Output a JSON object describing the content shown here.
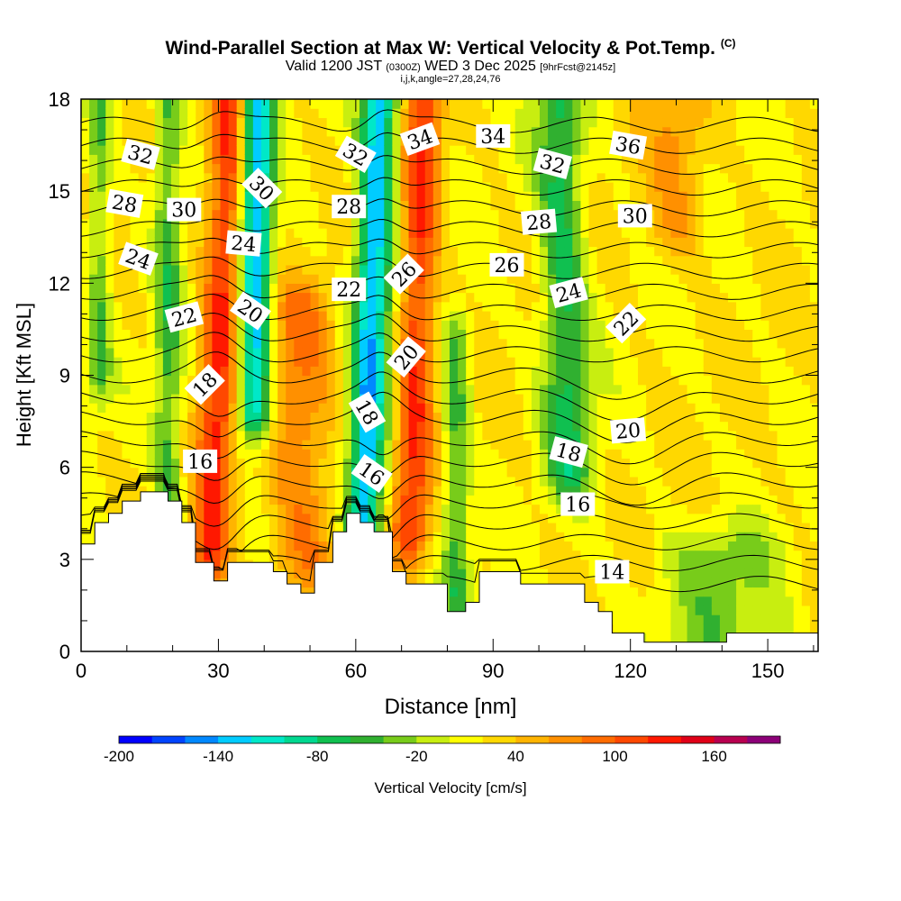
{
  "header": {
    "title": "Wind-Parallel Section at Max W: Vertical Velocity & Pot.Temp.",
    "title_mark": "(C)",
    "valid_prefix": "Valid 1200 JST",
    "valid_utc": "(0300Z)",
    "valid_date": "WED 3 Dec 2025",
    "fcst": "[9hrFcst@2145z]",
    "indices": "i,j,k,angle=27,28,24,76"
  },
  "chart_data": {
    "type": "heatmap",
    "title": "Wind-Parallel Section at Max W: Vertical Velocity & Pot.Temp.",
    "xlabel": "Distance [nm]",
    "ylabel": "Height [Kft MSL]",
    "xlim": [
      0,
      161
    ],
    "ylim": [
      0,
      18
    ],
    "x_ticks": [
      0,
      30,
      60,
      90,
      120,
      150
    ],
    "y_ticks": [
      0,
      3,
      6,
      9,
      12,
      15,
      18
    ],
    "x_tick_labels": [
      "0",
      "30",
      "60",
      "90",
      "120",
      "150"
    ],
    "y_tick_labels": [
      "0",
      "3",
      "6",
      "9",
      "12",
      "15",
      "18"
    ],
    "colorbar": {
      "label": "Vertical Velocity [cm/s]",
      "min": -200,
      "max": 200,
      "step": 20,
      "tick_values": [
        -200,
        -140,
        -80,
        -20,
        40,
        100,
        160
      ],
      "tick_labels": [
        "-200",
        "-140",
        "-80",
        "-20",
        "40",
        "100",
        "160"
      ],
      "colors": [
        "#0000ff",
        "#0044ff",
        "#0088ff",
        "#00ccff",
        "#00e8c8",
        "#00d890",
        "#10c050",
        "#30b030",
        "#78cc1a",
        "#c8ee10",
        "#ffff00",
        "#ffd800",
        "#ffb400",
        "#ff9000",
        "#ff6c00",
        "#ff4800",
        "#ff1800",
        "#e00018",
        "#b80050",
        "#8c0078"
      ]
    },
    "terrain_kft": [
      [
        0,
        3.5
      ],
      [
        3,
        3.5
      ],
      [
        3,
        4.2
      ],
      [
        6,
        4.2
      ],
      [
        6,
        4.5
      ],
      [
        9,
        4.5
      ],
      [
        9,
        4.9
      ],
      [
        13,
        4.9
      ],
      [
        13,
        5.2
      ],
      [
        19,
        5.2
      ],
      [
        19,
        4.9
      ],
      [
        22,
        4.9
      ],
      [
        22,
        4.2
      ],
      [
        25,
        4.2
      ],
      [
        25,
        2.9
      ],
      [
        29,
        2.9
      ],
      [
        29,
        2.3
      ],
      [
        32,
        2.3
      ],
      [
        32,
        2.9
      ],
      [
        42,
        2.9
      ],
      [
        42,
        2.6
      ],
      [
        45,
        2.6
      ],
      [
        45,
        2.2
      ],
      [
        48,
        2.2
      ],
      [
        48,
        1.9
      ],
      [
        51,
        1.9
      ],
      [
        51,
        2.9
      ],
      [
        55,
        2.9
      ],
      [
        55,
        3.9
      ],
      [
        58,
        3.9
      ],
      [
        58,
        4.5
      ],
      [
        61,
        4.5
      ],
      [
        61,
        4.2
      ],
      [
        64,
        4.2
      ],
      [
        64,
        3.9
      ],
      [
        68,
        3.9
      ],
      [
        68,
        2.6
      ],
      [
        71,
        2.6
      ],
      [
        71,
        2.2
      ],
      [
        80,
        2.2
      ],
      [
        80,
        1.3
      ],
      [
        84,
        1.3
      ],
      [
        84,
        1.6
      ],
      [
        87,
        1.6
      ],
      [
        87,
        2.6
      ],
      [
        96,
        2.6
      ],
      [
        96,
        2.2
      ],
      [
        110,
        2.2
      ],
      [
        110,
        1.6
      ],
      [
        113,
        1.6
      ],
      [
        113,
        1.3
      ],
      [
        116,
        1.3
      ],
      [
        116,
        0.6
      ],
      [
        123,
        0.6
      ],
      [
        123,
        0.3
      ],
      [
        141,
        0.3
      ],
      [
        141,
        0.6
      ],
      [
        161,
        0.6
      ]
    ],
    "velocity_field": {
      "background_cm_s": 20,
      "features": [
        {
          "kind": "updraft",
          "x_center": 30,
          "x_tilt_per_kft": 0.3,
          "width_nm": 4,
          "bottom_kft": 3,
          "top_kft": 18,
          "peak_cm_s": 110
        },
        {
          "kind": "downdraft",
          "x_center": 38,
          "x_tilt_per_kft": 0.05,
          "width_nm": 3.5,
          "bottom_kft": 8,
          "top_kft": 18,
          "peak_cm_s": -150
        },
        {
          "kind": "downdraft",
          "x_center": 19,
          "x_tilt_per_kft": 0,
          "width_nm": 3,
          "bottom_kft": 4,
          "top_kft": 18,
          "peak_cm_s": -60
        },
        {
          "kind": "downdraft",
          "x_center": 4,
          "x_tilt_per_kft": 0,
          "width_nm": 2.5,
          "bottom_kft": 9,
          "top_kft": 18,
          "peak_cm_s": -50
        },
        {
          "kind": "updraft",
          "x_center": 48,
          "x_tilt_per_kft": -0.1,
          "width_nm": 7,
          "bottom_kft": 3,
          "top_kft": 11,
          "peak_cm_s": 65
        },
        {
          "kind": "downdraft",
          "x_center": 63,
          "x_tilt_per_kft": 0.25,
          "width_nm": 4,
          "bottom_kft": 4,
          "top_kft": 18,
          "peak_cm_s": -150
        },
        {
          "kind": "updraft",
          "x_center": 73,
          "x_tilt_per_kft": 0.2,
          "width_nm": 4,
          "bottom_kft": 4,
          "top_kft": 18,
          "peak_cm_s": 105
        },
        {
          "kind": "downdraft",
          "x_center": 82,
          "x_tilt_per_kft": 0,
          "width_nm": 3,
          "bottom_kft": 2,
          "top_kft": 10,
          "peak_cm_s": -60
        },
        {
          "kind": "downdraft",
          "x_center": 106,
          "x_tilt_per_kft": -0.2,
          "width_nm": 5,
          "bottom_kft": 6,
          "top_kft": 18,
          "peak_cm_s": -80
        },
        {
          "kind": "updraft",
          "x_center": 130,
          "x_tilt_per_kft": 0,
          "width_nm": 6,
          "bottom_kft": 14,
          "top_kft": 18,
          "peak_cm_s": 50
        },
        {
          "kind": "downdraft",
          "x_center": 140,
          "x_tilt_per_kft": 0,
          "width_nm": 14,
          "bottom_kft": 0,
          "top_kft": 3,
          "peak_cm_s": -40
        }
      ]
    },
    "theta_contours": {
      "variable": "Potential Temperature [C]",
      "start_c": 14,
      "interval_c": 1,
      "count": 23,
      "base_height_kft": 2.2,
      "spacing_kft": 0.68
    },
    "contour_labels": [
      {
        "text": "32",
        "x": 13,
        "y": 16.2,
        "angle": 15
      },
      {
        "text": "28",
        "x": 9.5,
        "y": 14.6,
        "angle": 10
      },
      {
        "text": "24",
        "x": 12.5,
        "y": 12.8,
        "angle": 20
      },
      {
        "text": "30",
        "x": 22.5,
        "y": 14.4,
        "angle": 0
      },
      {
        "text": "22",
        "x": 22.5,
        "y": 10.9,
        "angle": -15
      },
      {
        "text": "18",
        "x": 27,
        "y": 8.7,
        "angle": -45
      },
      {
        "text": "16",
        "x": 26,
        "y": 6.2,
        "angle": 0
      },
      {
        "text": "30",
        "x": 39.5,
        "y": 15.1,
        "angle": 45
      },
      {
        "text": "24",
        "x": 35.5,
        "y": 13.3,
        "angle": 5
      },
      {
        "text": "20",
        "x": 37,
        "y": 11.1,
        "angle": 35
      },
      {
        "text": "32",
        "x": 60,
        "y": 16.2,
        "angle": 30
      },
      {
        "text": "28",
        "x": 58.5,
        "y": 14.5,
        "angle": 0
      },
      {
        "text": "22",
        "x": 58.5,
        "y": 11.8,
        "angle": 0
      },
      {
        "text": "18",
        "x": 62.5,
        "y": 7.8,
        "angle": 60
      },
      {
        "text": "16",
        "x": 63.5,
        "y": 5.8,
        "angle": 35
      },
      {
        "text": "34",
        "x": 74,
        "y": 16.7,
        "angle": -20
      },
      {
        "text": "26",
        "x": 70.5,
        "y": 12.3,
        "angle": -45
      },
      {
        "text": "20",
        "x": 71,
        "y": 9.6,
        "angle": -50
      },
      {
        "text": "34",
        "x": 90,
        "y": 16.8,
        "angle": 0
      },
      {
        "text": "32",
        "x": 103,
        "y": 15.9,
        "angle": 15
      },
      {
        "text": "36",
        "x": 119.5,
        "y": 16.5,
        "angle": 10
      },
      {
        "text": "28",
        "x": 100,
        "y": 14,
        "angle": -5
      },
      {
        "text": "30",
        "x": 121,
        "y": 14.2,
        "angle": 0
      },
      {
        "text": "26",
        "x": 93,
        "y": 12.6,
        "angle": 0
      },
      {
        "text": "24",
        "x": 106.5,
        "y": 11.7,
        "angle": -15
      },
      {
        "text": "22",
        "x": 119,
        "y": 10.7,
        "angle": -45
      },
      {
        "text": "20",
        "x": 119.5,
        "y": 7.2,
        "angle": -5
      },
      {
        "text": "18",
        "x": 106.5,
        "y": 6.5,
        "angle": 15
      },
      {
        "text": "16",
        "x": 108.5,
        "y": 4.8,
        "angle": 0
      },
      {
        "text": "14",
        "x": 116,
        "y": 2.6,
        "angle": 0
      }
    ]
  }
}
